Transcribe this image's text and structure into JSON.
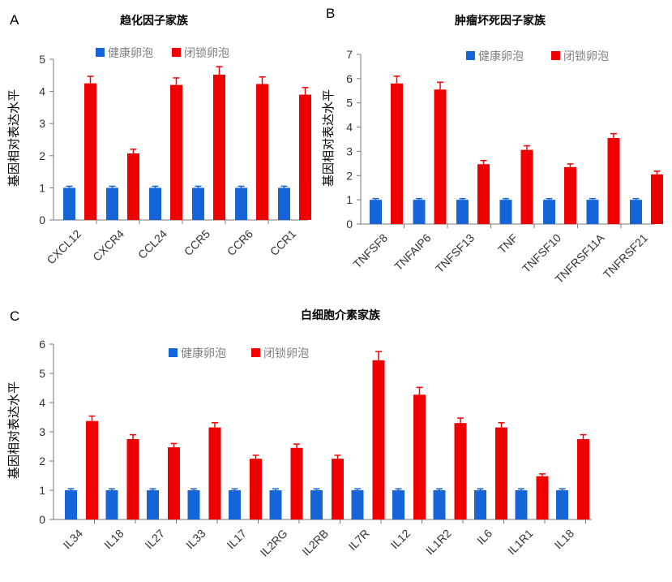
{
  "colors": {
    "healthy": "#1565d8",
    "atretic": "#f00000",
    "axis": "#7a7a7a"
  },
  "chart_data": [
    {
      "panel": "A",
      "type": "bar",
      "title": "趋化因子家族",
      "ylabel": "基因相对表达水平",
      "ylim": [
        0,
        5
      ],
      "yticks": [
        "0",
        "1",
        "2",
        "3",
        "4",
        "5"
      ],
      "categories": [
        "CXCL12",
        "CXCR4",
        "CCL24",
        "CCR5",
        "CCR6",
        "CCR1"
      ],
      "series": [
        {
          "name": "健康卵泡",
          "values": [
            1,
            1,
            1,
            1,
            1,
            1
          ],
          "errors": [
            0.05,
            0.05,
            0.05,
            0.05,
            0.05,
            0.05
          ]
        },
        {
          "name": "闭锁卵泡",
          "values": [
            4.25,
            2.07,
            4.2,
            4.52,
            4.23,
            3.9
          ],
          "errors": [
            0.22,
            0.13,
            0.22,
            0.25,
            0.22,
            0.22
          ]
        }
      ]
    },
    {
      "panel": "B",
      "type": "bar",
      "title": "肿瘤坏死因子家族",
      "ylabel": "基因相对表达水平",
      "ylim": [
        0,
        7
      ],
      "yticks": [
        "0",
        "1",
        "2",
        "3",
        "4",
        "5",
        "6",
        "7"
      ],
      "categories": [
        "TNFSF8",
        "TNFAIP6",
        "TNFSF13",
        "TNF",
        "TNFSF10",
        "TNFRSF11A",
        "TNFRSF21"
      ],
      "series": [
        {
          "name": "健康卵泡",
          "values": [
            1,
            1,
            1,
            1,
            1,
            1,
            1
          ],
          "errors": [
            0.05,
            0.05,
            0.05,
            0.05,
            0.05,
            0.05,
            0.05
          ]
        },
        {
          "name": "闭锁卵泡",
          "values": [
            5.8,
            5.55,
            2.47,
            3.06,
            2.35,
            3.55,
            2.05
          ],
          "errors": [
            0.3,
            0.3,
            0.15,
            0.17,
            0.13,
            0.18,
            0.13
          ]
        }
      ]
    },
    {
      "panel": "C",
      "type": "bar",
      "title": "白细胞介素家族",
      "ylabel": "基因相对表达水平",
      "ylim": [
        0,
        6
      ],
      "yticks": [
        "0",
        "1",
        "2",
        "3",
        "4",
        "5",
        "6"
      ],
      "categories": [
        "IL34",
        "IL18",
        "IL27",
        "IL33",
        "IL17",
        "IL2RG",
        "IL2RB",
        "IL7R",
        "IL12",
        "IL1R2",
        "IL6",
        "IL1R1",
        "IL18"
      ],
      "series": [
        {
          "name": "健康卵泡",
          "values": [
            1,
            1,
            1,
            1,
            1,
            1,
            1,
            1,
            1,
            1,
            1,
            1,
            1
          ],
          "errors": [
            0.05,
            0.05,
            0.05,
            0.05,
            0.05,
            0.05,
            0.05,
            0.05,
            0.05,
            0.05,
            0.05,
            0.05,
            0.05
          ]
        },
        {
          "name": "闭锁卵泡",
          "values": [
            3.37,
            2.75,
            2.47,
            3.15,
            2.08,
            2.45,
            2.08,
            5.45,
            4.27,
            3.3,
            3.15,
            1.48,
            2.75
          ],
          "errors": [
            0.17,
            0.15,
            0.13,
            0.16,
            0.12,
            0.13,
            0.12,
            0.3,
            0.25,
            0.17,
            0.16,
            0.08,
            0.15
          ]
        }
      ]
    }
  ]
}
